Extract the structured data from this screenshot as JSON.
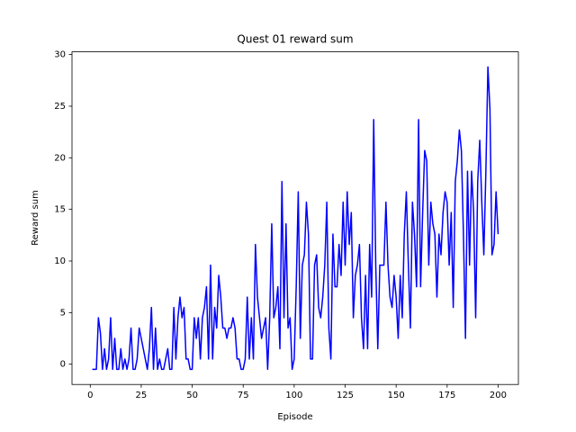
{
  "chart_data": {
    "type": "line",
    "title": "Quest 01 reward sum",
    "x_label": "Episode",
    "y_label": "Reward sum",
    "x": [
      1,
      2,
      3,
      4,
      5,
      6,
      7,
      8,
      9,
      10,
      11,
      12,
      13,
      14,
      15,
      16,
      17,
      18,
      19,
      20,
      21,
      22,
      23,
      24,
      25,
      26,
      27,
      28,
      29,
      30,
      31,
      32,
      33,
      34,
      35,
      36,
      37,
      38,
      39,
      40,
      41,
      42,
      43,
      44,
      45,
      46,
      47,
      48,
      49,
      50,
      51,
      52,
      53,
      54,
      55,
      56,
      57,
      58,
      59,
      60,
      61,
      62,
      63,
      64,
      65,
      66,
      67,
      68,
      69,
      70,
      71,
      72,
      73,
      74,
      75,
      76,
      77,
      78,
      79,
      80,
      81,
      82,
      83,
      84,
      85,
      86,
      87,
      88,
      89,
      90,
      91,
      92,
      93,
      94,
      95,
      96,
      97,
      98,
      99,
      100,
      101,
      102,
      103,
      104,
      105,
      106,
      107,
      108,
      109,
      110,
      111,
      112,
      113,
      114,
      115,
      116,
      117,
      118,
      119,
      120,
      121,
      122,
      123,
      124,
      125,
      126,
      127,
      128,
      129,
      130,
      131,
      132,
      133,
      134,
      135,
      136,
      137,
      138,
      139,
      140,
      141,
      142,
      143,
      144,
      145,
      146,
      147,
      148,
      149,
      150,
      151,
      152,
      153,
      154,
      155,
      156,
      157,
      158,
      159,
      160,
      161,
      162,
      163,
      164,
      165,
      166,
      167,
      168,
      169,
      170,
      171,
      172,
      173,
      174,
      175,
      176,
      177,
      178,
      179,
      180,
      181,
      182,
      183,
      184,
      185,
      186,
      187,
      188,
      189,
      190,
      191,
      192,
      193,
      194,
      195,
      196,
      197,
      198,
      199,
      200
    ],
    "series": [
      {
        "name": "reward sum",
        "color": "#0000ff",
        "values": [
          -0.5,
          -0.5,
          -0.5,
          4.5,
          3.0,
          -0.5,
          1.5,
          -0.5,
          0.5,
          4.5,
          -0.5,
          2.5,
          -0.5,
          -0.5,
          1.5,
          -0.5,
          0.5,
          -0.5,
          0.5,
          3.5,
          -0.5,
          -0.5,
          0.5,
          3.5,
          2.5,
          1.5,
          0.5,
          -0.5,
          1.5,
          5.5,
          -0.5,
          3.5,
          -0.5,
          0.5,
          -0.5,
          -0.5,
          0.5,
          1.5,
          -0.5,
          -0.5,
          5.5,
          0.5,
          4.5,
          6.5,
          4.5,
          5.5,
          0.5,
          0.5,
          -0.5,
          -0.5,
          4.5,
          2.5,
          4.5,
          0.5,
          4.5,
          5.5,
          7.5,
          0.5,
          9.6,
          0.5,
          5.5,
          3.5,
          8.6,
          6.5,
          3.5,
          3.5,
          2.5,
          3.5,
          3.5,
          4.5,
          3.5,
          0.5,
          0.5,
          -0.5,
          -0.5,
          0.5,
          6.5,
          0.5,
          4.5,
          0.5,
          11.6,
          6.5,
          4.5,
          2.5,
          3.5,
          4.5,
          -0.5,
          4.5,
          13.6,
          4.5,
          5.5,
          7.5,
          1.5,
          17.7,
          4.5,
          13.6,
          3.5,
          4.5,
          -0.5,
          0.5,
          7.5,
          16.7,
          2.5,
          9.6,
          10.6,
          15.7,
          12.6,
          0.5,
          0.5,
          9.6,
          10.6,
          5.5,
          4.5,
          6.5,
          9.6,
          15.7,
          3.5,
          0.5,
          12.6,
          7.5,
          7.5,
          11.6,
          8.6,
          15.7,
          9.6,
          16.7,
          11.6,
          14.7,
          4.5,
          8.6,
          9.6,
          11.6,
          4.5,
          1.5,
          8.6,
          1.5,
          11.6,
          6.5,
          23.7,
          9.6,
          1.5,
          9.6,
          9.6,
          9.6,
          15.7,
          9.6,
          6.5,
          5.5,
          8.6,
          6.5,
          2.5,
          8.6,
          4.5,
          12.6,
          16.7,
          9.6,
          3.5,
          15.7,
          12.6,
          7.5,
          23.7,
          7.5,
          14.7,
          20.7,
          19.7,
          9.6,
          15.7,
          13.6,
          12.6,
          6.5,
          12.6,
          10.6,
          14.7,
          16.7,
          15.7,
          9.6,
          14.7,
          5.5,
          17.7,
          19.7,
          22.7,
          20.7,
          12.6,
          2.5,
          18.7,
          9.6,
          18.7,
          14.7,
          4.5,
          17.7,
          21.7,
          15.7,
          10.6,
          18.7,
          28.8,
          24.7,
          10.6,
          11.6,
          16.7,
          12.6
        ]
      }
    ],
    "xlim": [
      -8.95,
      209.95
    ],
    "ylim": [
      -1.965,
      30.265
    ],
    "xticks": [
      0,
      25,
      50,
      75,
      100,
      125,
      150,
      175,
      200
    ],
    "yticks": [
      0,
      5,
      10,
      15,
      20,
      25,
      30
    ]
  }
}
